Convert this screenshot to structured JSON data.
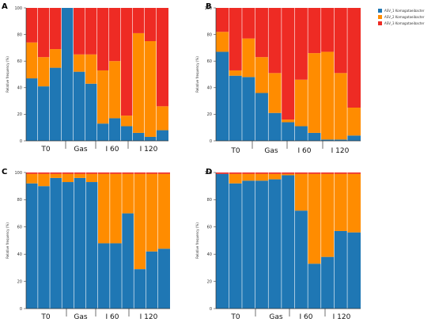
{
  "legend": [
    {
      "label": "ASV_1 Komagataeibacter",
      "color": "#1f77b4"
    },
    {
      "label": "ASV_2 Komagataeibacter",
      "color": "#ff8c00"
    },
    {
      "label": "ASV_3 Komagataeibacter",
      "color": "#ee2b24"
    }
  ],
  "chart_data": [
    {
      "type": "bar",
      "stacked": true,
      "panel": "A",
      "ylabel": "Relative frequency (%)",
      "ylim": [
        0,
        100
      ],
      "yticks": [
        0,
        20,
        40,
        60,
        80,
        100
      ],
      "groups": [
        "T0",
        "Gas",
        "I 60",
        "I 120"
      ],
      "series": [
        {
          "name": "ASV_1 Komagataeibacter",
          "values": [
            47,
            41,
            55,
            100,
            52,
            43,
            13,
            17,
            11,
            6,
            3,
            8
          ]
        },
        {
          "name": "ASV_2 Komagataeibacter",
          "values": [
            27,
            22,
            14,
            0,
            13,
            22,
            40,
            43,
            8,
            75,
            72,
            18
          ]
        },
        {
          "name": "ASV_3 Komagataeibacter",
          "values": [
            26,
            37,
            31,
            0,
            35,
            35,
            47,
            40,
            81,
            19,
            25,
            74
          ]
        }
      ]
    },
    {
      "type": "bar",
      "stacked": true,
      "panel": "B",
      "ylabel": "Relative frequency (%)",
      "ylim": [
        0,
        100
      ],
      "yticks": [
        0,
        20,
        40,
        60,
        80,
        100
      ],
      "groups": [
        "T0",
        "Gas",
        "I 60",
        "I 120"
      ],
      "series": [
        {
          "name": "ASV_1 Komagataeibacter",
          "values": [
            67,
            49,
            48,
            36,
            21,
            14,
            11,
            6,
            1,
            1,
            4
          ]
        },
        {
          "name": "ASV_2 Komagataeibacter",
          "values": [
            15,
            4,
            29,
            27,
            30,
            2,
            35,
            60,
            66,
            50,
            21
          ]
        },
        {
          "name": "ASV_3 Komagataeibacter",
          "values": [
            18,
            47,
            23,
            37,
            49,
            84,
            54,
            34,
            33,
            49,
            75
          ]
        }
      ]
    },
    {
      "type": "bar",
      "stacked": true,
      "panel": "C",
      "ylabel": "Relative frequency (%)",
      "ylim": [
        0,
        100
      ],
      "yticks": [
        0,
        20,
        40,
        60,
        80,
        100
      ],
      "groups": [
        "T0",
        "Gas",
        "I 60",
        "I 120"
      ],
      "series": [
        {
          "name": "ASV_1 Komagataeibacter",
          "values": [
            92,
            90,
            96,
            93,
            96,
            93,
            48,
            48,
            70,
            29,
            42,
            44
          ]
        },
        {
          "name": "ASV_2 Komagataeibacter",
          "values": [
            7,
            9,
            3,
            6,
            3,
            6,
            51,
            51,
            29,
            70,
            57,
            55
          ]
        },
        {
          "name": "ASV_3 Komagataeibacter",
          "values": [
            1,
            1,
            1,
            1,
            1,
            1,
            1,
            1,
            1,
            1,
            1,
            1
          ]
        }
      ]
    },
    {
      "type": "bar",
      "stacked": true,
      "panel": "D",
      "ylabel": "Relative frequency (%)",
      "ylim": [
        0,
        100
      ],
      "yticks": [
        0,
        20,
        40,
        60,
        80,
        100
      ],
      "groups": [
        "T0",
        "Gas",
        "I 60",
        "I 120"
      ],
      "series": [
        {
          "name": "ASV_1 Komagataeibacter",
          "values": [
            99,
            92,
            94,
            94,
            95,
            98,
            72,
            33,
            38,
            57,
            56
          ]
        },
        {
          "name": "ASV_2 Komagataeibacter",
          "values": [
            0,
            7,
            5,
            5,
            4,
            1,
            27,
            66,
            61,
            42,
            43
          ]
        },
        {
          "name": "ASV_3 Komagataeibacter",
          "values": [
            1,
            1,
            1,
            1,
            1,
            1,
            1,
            1,
            1,
            1,
            1
          ]
        }
      ]
    }
  ]
}
